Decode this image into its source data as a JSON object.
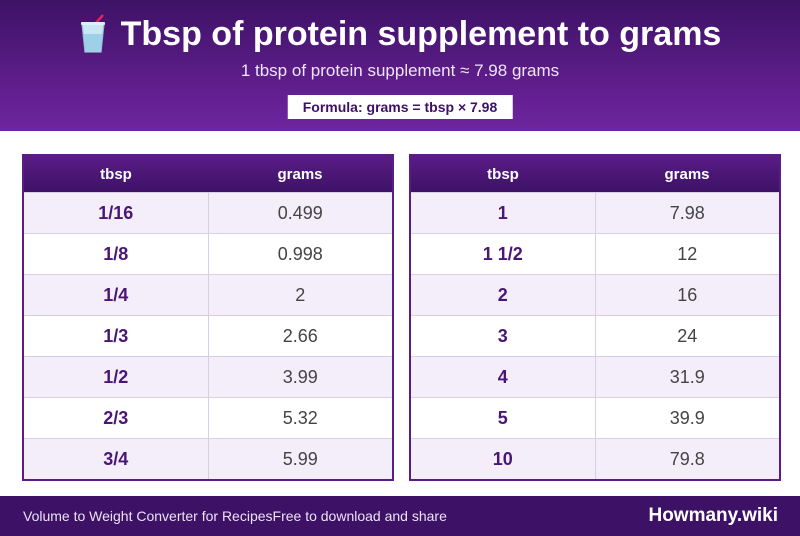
{
  "header": {
    "icon": "drink-cup-icon",
    "title": "Tbsp of protein supplement to grams",
    "subtitle": "1 tbsp of protein supplement ≈ 7.98 grams",
    "formula": "Formula: grams = tbsp × 7.98"
  },
  "tables": [
    {
      "headers": [
        "tbsp",
        "grams"
      ],
      "rows": [
        [
          "1/16",
          "0.499"
        ],
        [
          "1/8",
          "0.998"
        ],
        [
          "1/4",
          "2"
        ],
        [
          "1/3",
          "2.66"
        ],
        [
          "1/2",
          "3.99"
        ],
        [
          "2/3",
          "5.32"
        ],
        [
          "3/4",
          "5.99"
        ]
      ]
    },
    {
      "headers": [
        "tbsp",
        "grams"
      ],
      "rows": [
        [
          "1",
          "7.98"
        ],
        [
          "1 1/2",
          "12"
        ],
        [
          "2",
          "16"
        ],
        [
          "3",
          "24"
        ],
        [
          "4",
          "31.9"
        ],
        [
          "5",
          "39.9"
        ],
        [
          "10",
          "79.8"
        ]
      ]
    }
  ],
  "footer": {
    "left_text": "Volume to Weight Converter for Recipes",
    "middle_text": "Free to download and share",
    "brand": "Howmany.wiki"
  },
  "colors": {
    "primary": "#5a1c86",
    "dark": "#3d1266",
    "row_alt": "#f4eefa"
  }
}
